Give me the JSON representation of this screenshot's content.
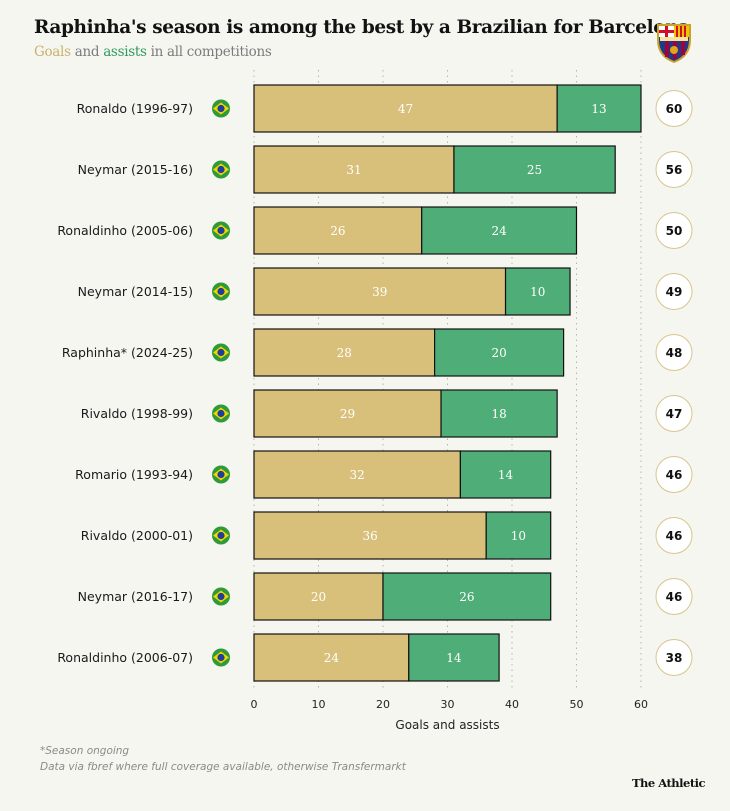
{
  "header": {
    "title": "Raphinha's season is among the best by a Brazilian for Barcelona",
    "subtitle_goals": "Goals",
    "subtitle_and": " and ",
    "subtitle_assists": "assists",
    "subtitle_rest": " in all competitions"
  },
  "chart_data": {
    "type": "bar",
    "stacked": true,
    "orientation": "horizontal",
    "categories": [
      "Ronaldo (1996-97)",
      "Neymar (2015-16)",
      "Ronaldinho (2005-06)",
      "Neymar (2014-15)",
      "Raphinha* (2024-25)",
      "Rivaldo (1998-99)",
      "Romario (1993-94)",
      "Rivaldo (2000-01)",
      "Neymar (2016-17)",
      "Ronaldinho (2006-07)"
    ],
    "series": [
      {
        "name": "Goals",
        "color": "#d8c07a",
        "values": [
          47,
          31,
          26,
          39,
          28,
          29,
          32,
          36,
          20,
          24
        ]
      },
      {
        "name": "assists",
        "color": "#4fad77",
        "values": [
          13,
          25,
          24,
          10,
          20,
          18,
          14,
          10,
          26,
          14
        ]
      }
    ],
    "totals": [
      60,
      56,
      50,
      49,
      48,
      47,
      46,
      46,
      46,
      38
    ],
    "xlabel": "Goals and assists",
    "xlim": [
      0,
      60
    ],
    "xticks": [
      0,
      10,
      20,
      30,
      40,
      50,
      60
    ],
    "grid": true,
    "row_icon": "brazil-flag-icon"
  },
  "footer": {
    "note1": "*Season ongoing",
    "note2": "Data via fbref where full coverage available, otherwise Transfermarkt",
    "brand": "The Athletic"
  },
  "logo": {
    "icon": "fc-barcelona-crest",
    "text": "FCB"
  }
}
